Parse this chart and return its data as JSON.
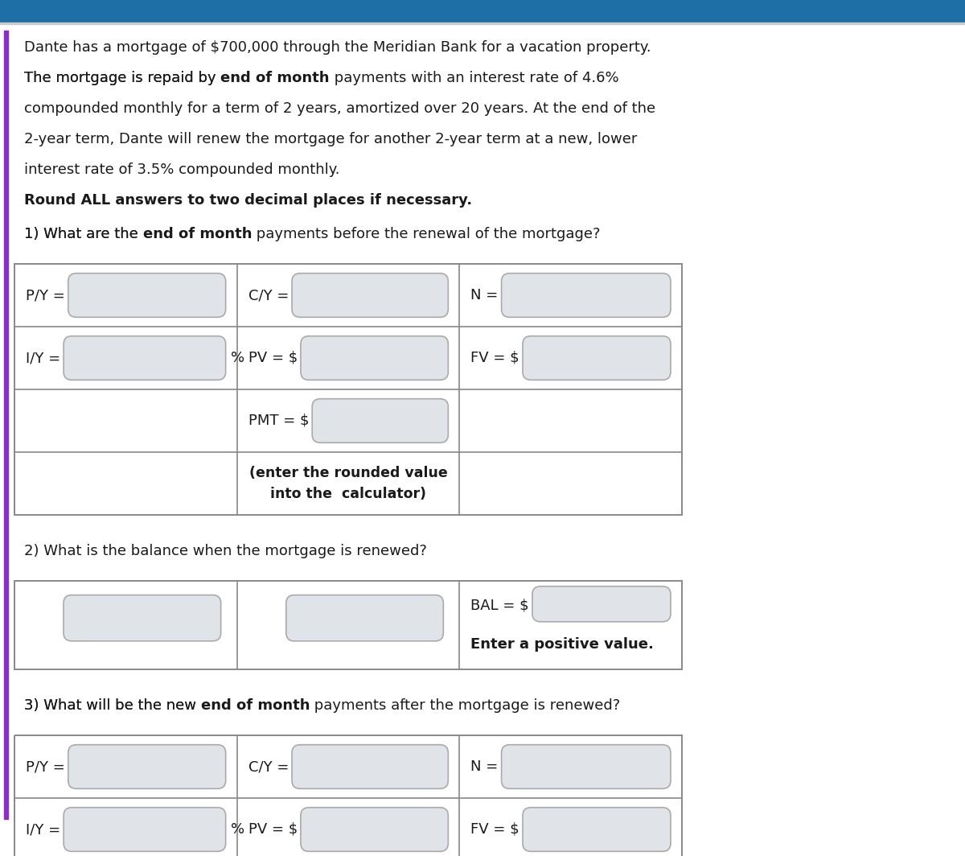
{
  "bg_color": "#ffffff",
  "text_color": "#1a1a1a",
  "border_color": "#888888",
  "box_fill": "#e0e4e8",
  "box_edge": "#aaaaaa",
  "left_bar_color": "#8b2fc9",
  "header_bg": "#2471a3",
  "line1": "Dante has a mortgage of $700,000 through the Meridian Bank for a vacation property.",
  "line2_pre": "The mortgage is repaid by ",
  "line2_bold": "end of month",
  "line2_post": " payments with an interest rate of 4.6%",
  "line3": "compounded monthly for a term of 2 years, amortized over 20 years. At the end of the",
  "line4": "2-year term, Dante will renew the mortgage for another 2-year term at a new, lower",
  "line5": "interest rate of 3.5% compounded monthly.",
  "round_note": "Round ALL answers to two decimal places if necessary.",
  "q1_pre": "1) What are the ",
  "q1_bold": "end of month",
  "q1_post": " payments before the renewal of the mortgage?",
  "q2_text": "2) What is the balance when the mortgage is renewed?",
  "q3_pre": "3) What will be the the new ",
  "q3_bold": "end of month",
  "q3_post": " payments after the mortgage is renewed?",
  "note_italic": "(enter the rounded value\ninto the  calculator)",
  "enter_pos": "Enter a positive value.",
  "font_size": 13.0,
  "small_font": 12.0
}
